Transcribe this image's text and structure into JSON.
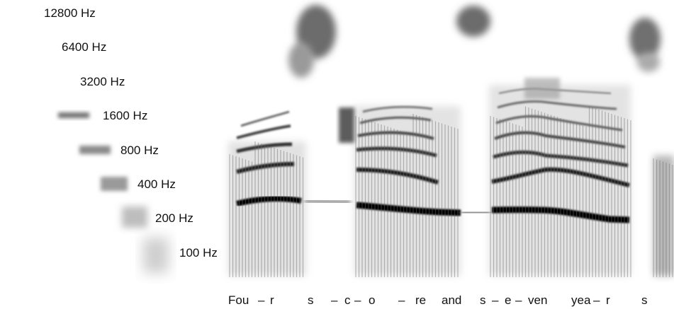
{
  "chart_data": {
    "type": "heatmap",
    "title": "",
    "xlabel": "",
    "ylabel": "",
    "grid": false,
    "legend": "none",
    "frequency_labels": [
      "12800 Hz",
      "6400 Hz",
      "3200 Hz",
      "1600 Hz",
      "800 Hz",
      "400 Hz",
      "200 Hz",
      "100 Hz"
    ],
    "syllable_labels": [
      "Fou",
      "–",
      "r",
      "s",
      "–",
      "c",
      "–",
      "o",
      "–",
      "re",
      "and",
      "s",
      "–",
      "e",
      "–",
      "ven",
      "yea",
      "–",
      "r",
      "s"
    ],
    "colors": {
      "ink": "#000000",
      "label": "#111111",
      "background": "#ffffff"
    }
  }
}
